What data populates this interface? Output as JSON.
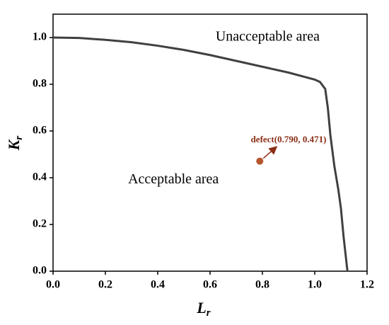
{
  "chart_data": {
    "type": "line",
    "xlabel": [
      "L",
      "r"
    ],
    "ylabel": [
      "K",
      "r"
    ],
    "xlim": [
      0,
      1.2
    ],
    "ylim": [
      0,
      1.1
    ],
    "xticks": [
      {
        "value": 0,
        "label": "0.0"
      },
      0.2,
      0.4,
      0.6,
      0.8,
      {
        "value": 1,
        "label": "1.0"
      },
      1.2
    ],
    "yticks": [
      {
        "value": 0,
        "label": "0.0"
      },
      0.2,
      0.4,
      0.6,
      0.8,
      {
        "value": 1,
        "label": "1.0"
      }
    ],
    "grid": false,
    "series": [
      {
        "type": "line",
        "color": "#404040",
        "x": [
          0,
          0.1,
          0.2,
          0.3,
          0.4,
          0.5,
          0.6,
          0.7,
          0.8,
          0.9,
          1.0,
          1.02,
          1.04,
          1.05,
          1.06,
          1.075,
          1.09,
          1.1,
          1.11,
          1.12,
          1.125
        ],
        "values": [
          1.0,
          0.998,
          0.99,
          0.98,
          0.965,
          0.947,
          0.925,
          0.9,
          0.875,
          0.85,
          0.82,
          0.81,
          0.78,
          0.7,
          0.58,
          0.45,
          0.35,
          0.27,
          0.15,
          0.05,
          0.0
        ]
      },
      {
        "type": "scatter",
        "color": "#b5562b",
        "x": [
          0.79
        ],
        "values": [
          0.471
        ]
      }
    ],
    "annotations": [
      {
        "text": "Unacceptable area",
        "x": 0.82,
        "y": 1.0
      },
      {
        "text": "Acceptable area",
        "x": 0.46,
        "y": 0.39
      },
      {
        "text": "defect(0.790,   0.471)",
        "x": 0.9,
        "y": 0.56
      }
    ]
  }
}
